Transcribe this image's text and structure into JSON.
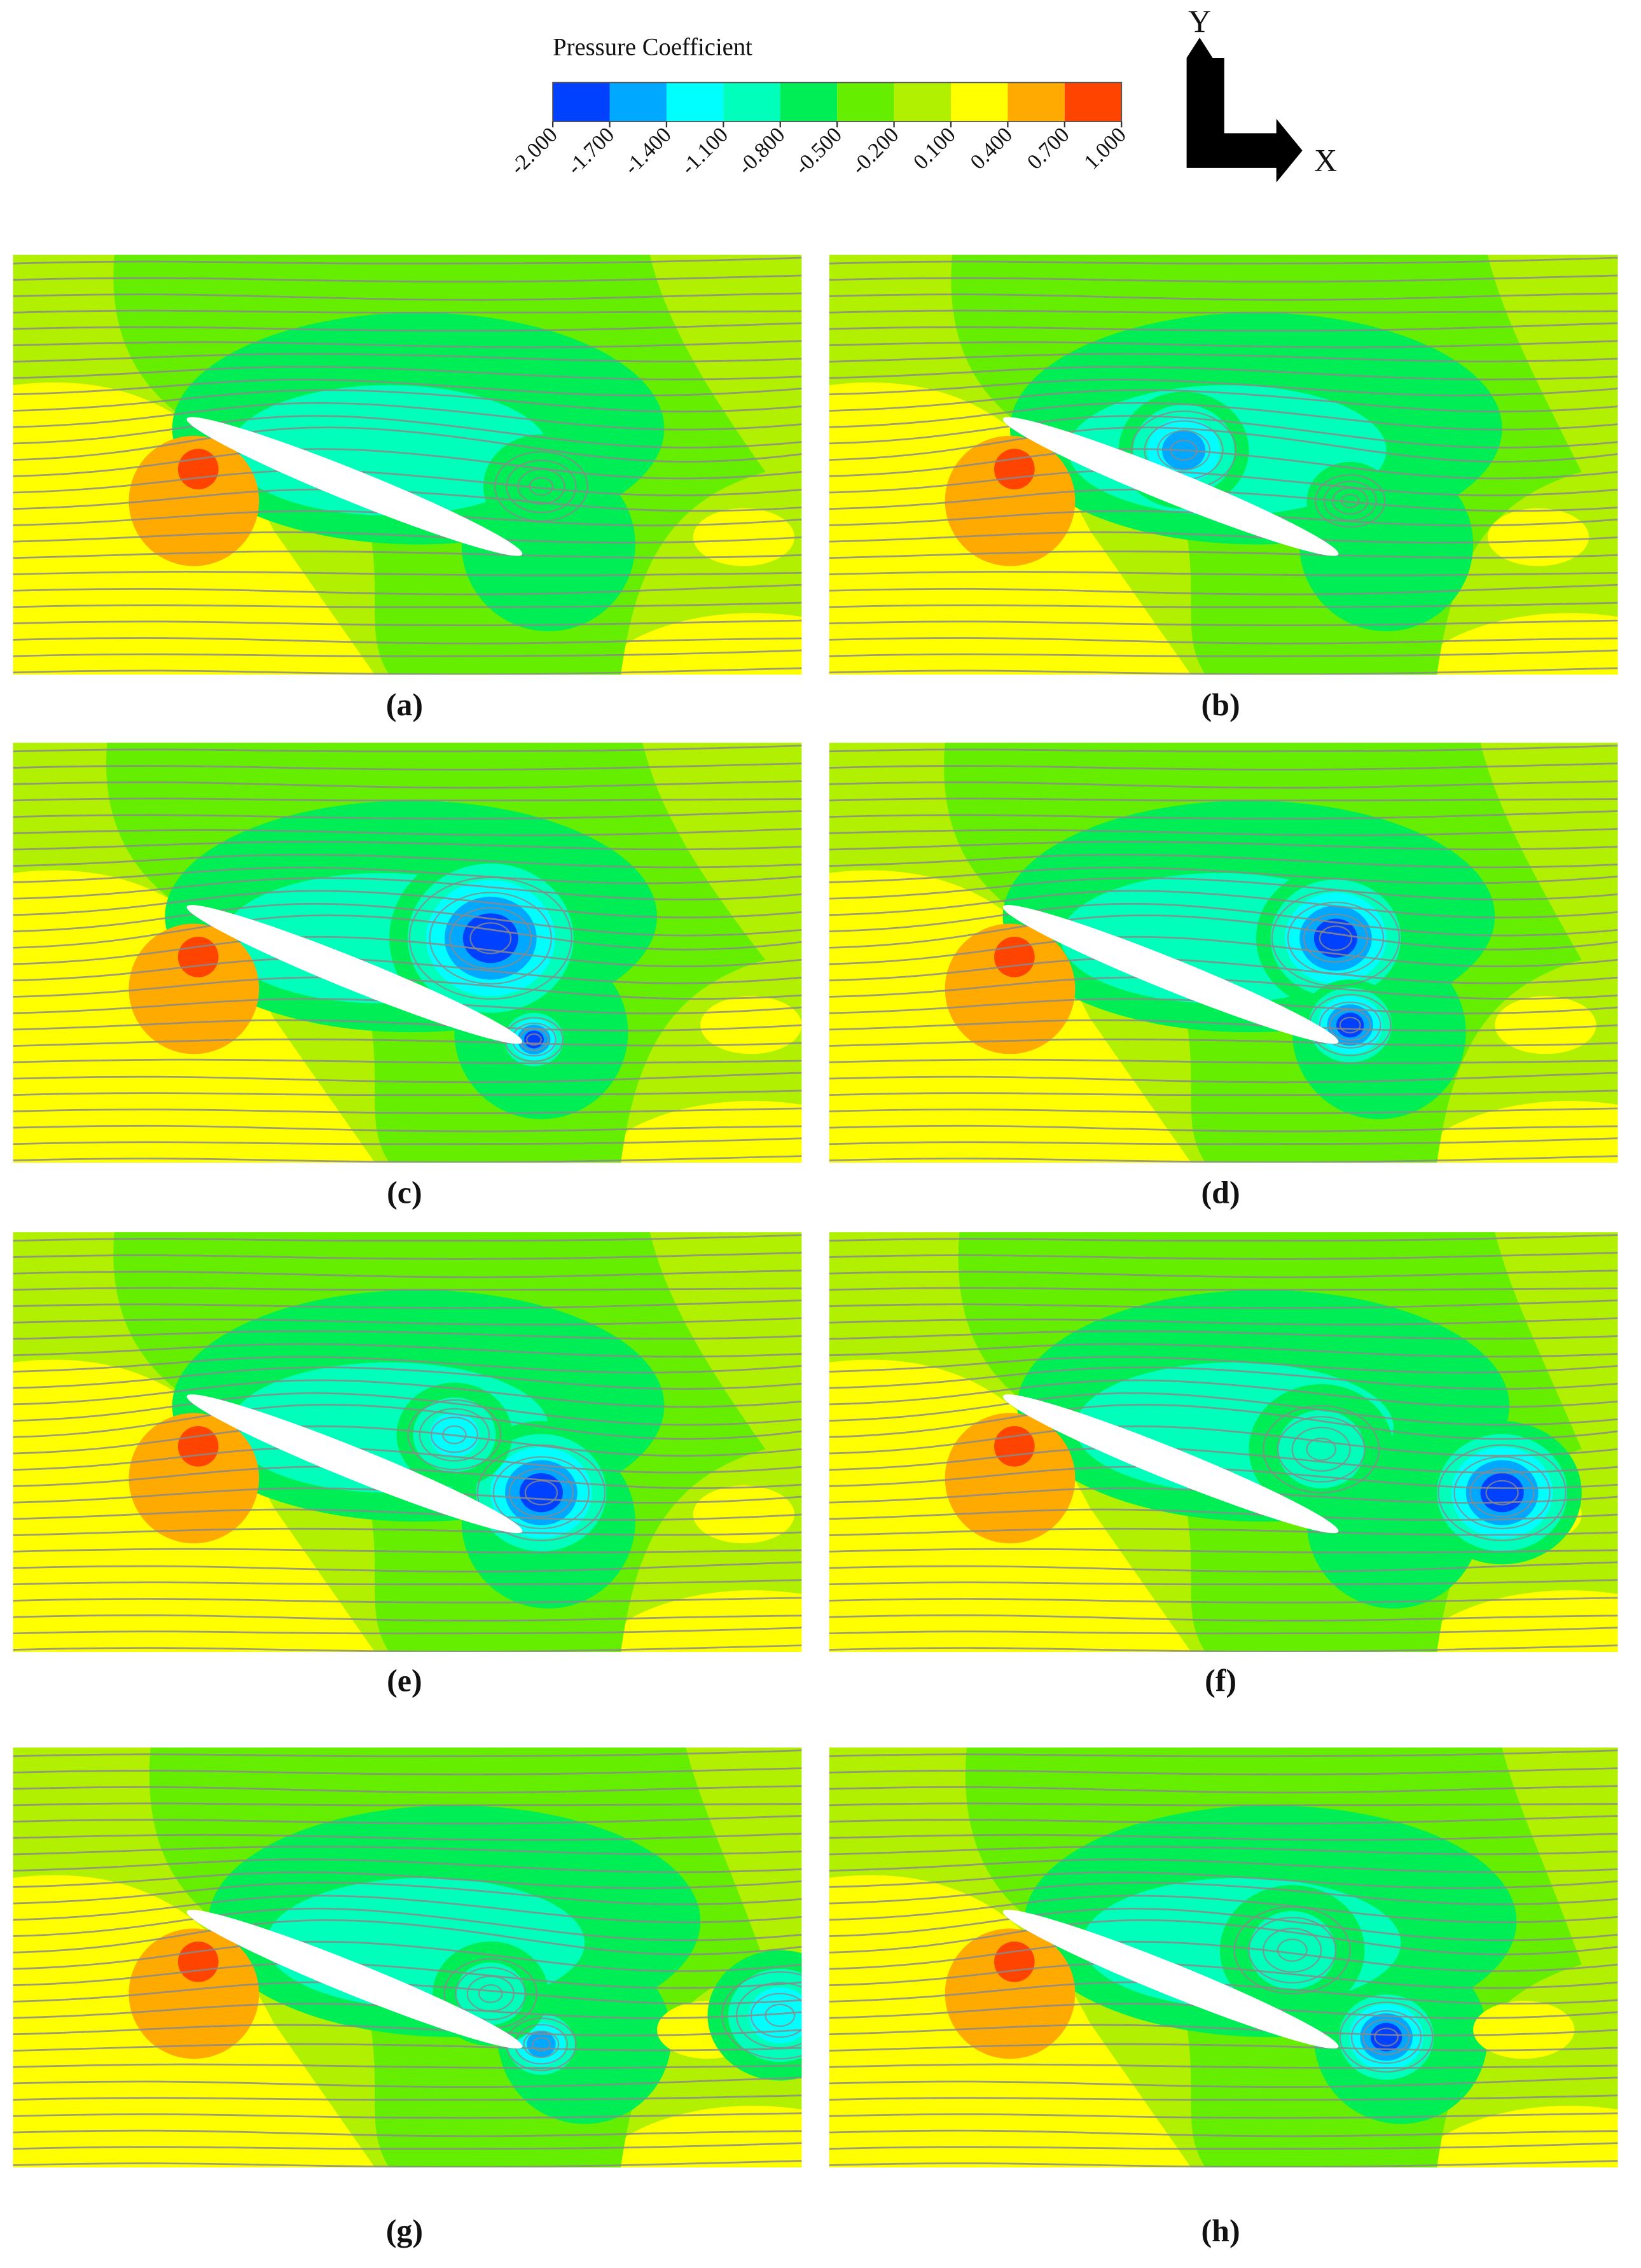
{
  "colorbar": {
    "title": "Pressure Coefficient",
    "ticks": [
      {
        "value": -2,
        "label": "-2.000"
      },
      {
        "value": -1.7,
        "label": "-1.700"
      },
      {
        "value": -1.4,
        "label": "-1.400"
      },
      {
        "value": -1.1,
        "label": "-1.100"
      },
      {
        "value": -0.8,
        "label": "-0.800"
      },
      {
        "value": -0.5,
        "label": "-0.500"
      },
      {
        "value": -0.2,
        "label": "-0.200"
      },
      {
        "value": 0.1,
        "label": "0.100"
      },
      {
        "value": 0.4,
        "label": "0.400"
      },
      {
        "value": 0.7,
        "label": "0.700"
      },
      {
        "value": 1,
        "label": "1.000"
      }
    ],
    "colors": [
      "#0040ff",
      "#00a8ff",
      "#00ffff",
      "#00ffbb",
      "#00ee55",
      "#66ee00",
      "#b0f000",
      "#ffff00",
      "#ffaa00",
      "#ff4400"
    ]
  },
  "axes": {
    "y": "Y",
    "x": "X"
  },
  "panels": [
    {
      "caption": "(a)"
    },
    {
      "caption": "(b)"
    },
    {
      "caption": "(c)"
    },
    {
      "caption": "(d)"
    },
    {
      "caption": "(e)"
    },
    {
      "caption": "(f)"
    },
    {
      "caption": "(g)"
    },
    {
      "caption": "(h)"
    }
  ]
}
